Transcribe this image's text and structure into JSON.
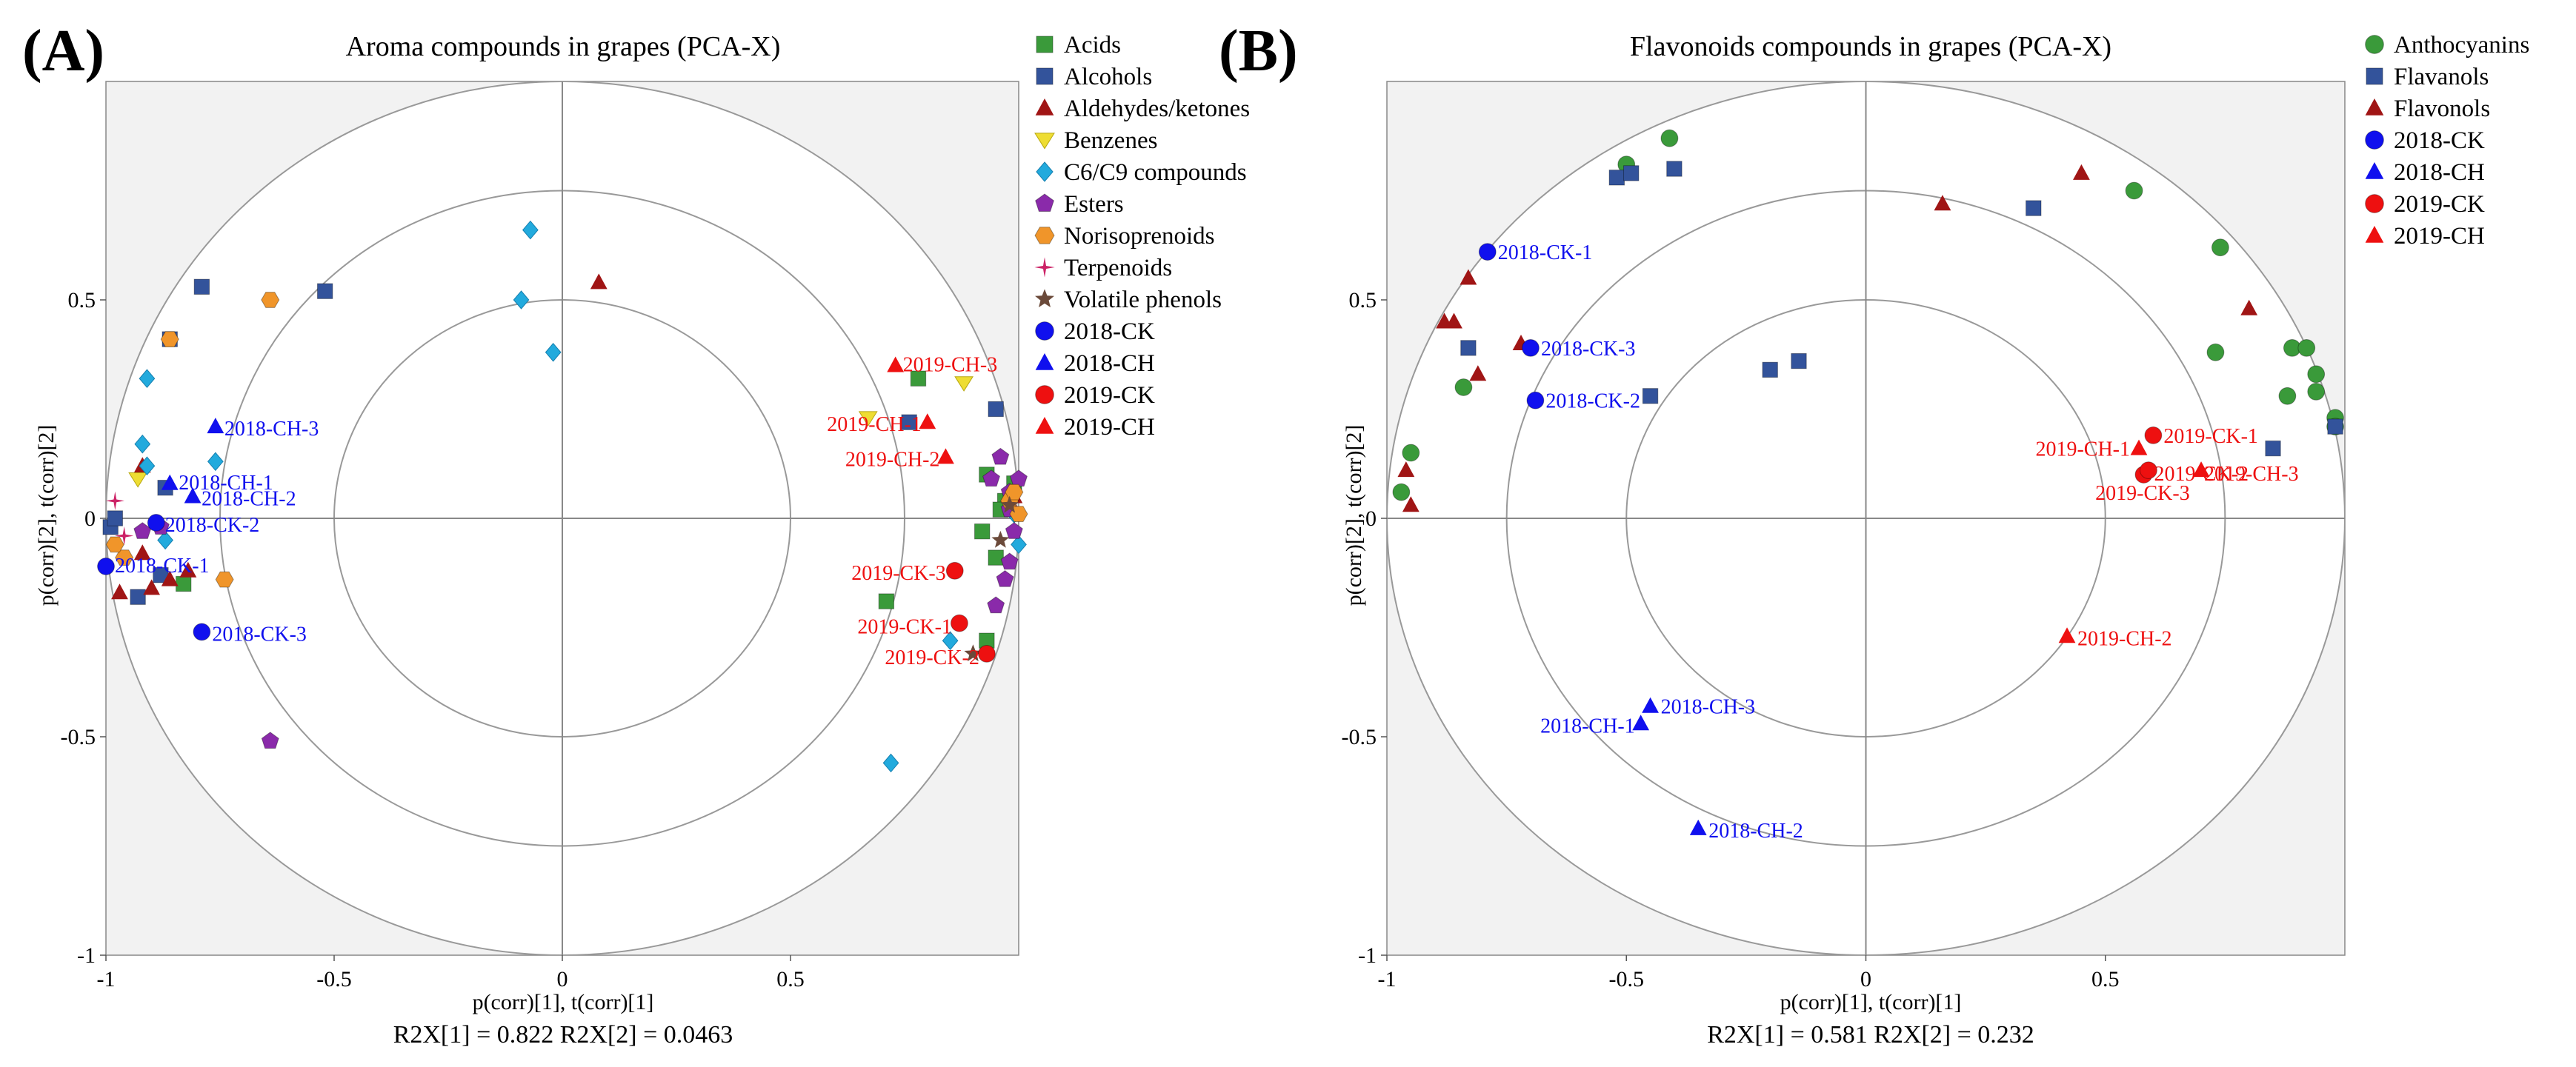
{
  "panels": [
    {
      "panel_label": "(A)",
      "r2_text": "R2X[1] = 0.822   R2X[2] = 0.0463",
      "legend": [
        {
          "name": "Acids",
          "color": "#3a9a3a",
          "shape": "square"
        },
        {
          "name": "Alcohols",
          "color": "#33539b",
          "shape": "square"
        },
        {
          "name": "Aldehydes/ketones",
          "color": "#a01515",
          "shape": "triangle"
        },
        {
          "name": "Benzenes",
          "color": "#eedd33",
          "shape": "triangle-down"
        },
        {
          "name": "C6/C9 compounds",
          "color": "#22aadd",
          "shape": "diamond"
        },
        {
          "name": "Esters",
          "color": "#8a2aaa",
          "shape": "pentagon"
        },
        {
          "name": "Norisoprenoids",
          "color": "#f0952a",
          "shape": "hexagon"
        },
        {
          "name": "Terpenoids",
          "color": "#cc2266",
          "shape": "star"
        },
        {
          "name": "Volatile phenols",
          "color": "#6b4a3a",
          "shape": "star5"
        },
        {
          "name": "2018-CK",
          "color": "#1010ee",
          "shape": "circle"
        },
        {
          "name": "2018-CH",
          "color": "#1010ee",
          "shape": "triangle"
        },
        {
          "name": "2019-CK",
          "color": "#ee1010",
          "shape": "circle"
        },
        {
          "name": "2019-CH",
          "color": "#ee1010",
          "shape": "triangle"
        }
      ]
    },
    {
      "panel_label": "(B)",
      "r2_text": "R2X[1] = 0.581  R2X[2] = 0.232",
      "legend": [
        {
          "name": "Anthocyanins",
          "color": "#3a9a3a",
          "shape": "circle"
        },
        {
          "name": "Flavanols",
          "color": "#33539b",
          "shape": "square"
        },
        {
          "name": "Flavonols",
          "color": "#a01515",
          "shape": "triangle"
        },
        {
          "name": "2018-CK",
          "color": "#1010ee",
          "shape": "circle"
        },
        {
          "name": "2018-CH",
          "color": "#1010ee",
          "shape": "triangle"
        },
        {
          "name": "2019-CK",
          "color": "#ee1010",
          "shape": "circle"
        },
        {
          "name": "2019-CH",
          "color": "#ee1010",
          "shape": "triangle"
        }
      ]
    }
  ],
  "chart_data": [
    {
      "type": "scatter",
      "title": "Aroma compounds in grapes (PCA-X)",
      "xlabel": "p(corr)[1], t(corr)[1]",
      "ylabel": "p(corr)[2], t(corr)[2]",
      "xlim": [
        -1,
        1
      ],
      "ylim": [
        -1,
        1
      ],
      "xticks": [
        "-1",
        "-0.5",
        "0",
        "0.5"
      ],
      "yticks": [
        "-1",
        "-0.5",
        "0",
        "0.5"
      ],
      "circles": [
        0.5,
        0.75,
        1.0
      ],
      "series": [
        {
          "name": "Acids",
          "points": [
            [
              -0.83,
              -0.15
            ],
            [
              0.78,
              0.32
            ],
            [
              0.93,
              0.1
            ],
            [
              0.97,
              0.04
            ],
            [
              0.92,
              -0.03
            ],
            [
              0.95,
              -0.09
            ],
            [
              0.71,
              -0.19
            ],
            [
              0.93,
              -0.28
            ],
            [
              0.96,
              0.02
            ],
            [
              0.99,
              0.08
            ]
          ]
        },
        {
          "name": "Alcohols",
          "points": [
            [
              -0.99,
              -0.02
            ],
            [
              -0.98,
              0.0
            ],
            [
              -0.93,
              -0.18
            ],
            [
              -0.88,
              -0.13
            ],
            [
              -0.87,
              0.07
            ],
            [
              -0.86,
              0.41
            ],
            [
              -0.79,
              0.53
            ],
            [
              -0.52,
              0.52
            ],
            [
              0.76,
              0.22
            ],
            [
              0.95,
              0.25
            ]
          ]
        },
        {
          "name": "Aldehydes/ketones",
          "points": [
            [
              -0.97,
              -0.17
            ],
            [
              -0.92,
              -0.08
            ],
            [
              -0.9,
              -0.16
            ],
            [
              -0.86,
              -0.14
            ],
            [
              -0.82,
              -0.12
            ],
            [
              -0.92,
              0.12
            ],
            [
              0.08,
              0.54
            ],
            [
              0.99,
              0.05
            ],
            [
              0.99,
              0.02
            ]
          ]
        },
        {
          "name": "Benzenes",
          "points": [
            [
              -0.93,
              0.09
            ],
            [
              0.67,
              0.23
            ],
            [
              0.88,
              0.31
            ]
          ]
        },
        {
          "name": "C6/C9 compounds",
          "points": [
            [
              -0.91,
              0.32
            ],
            [
              -0.92,
              0.17
            ],
            [
              -0.91,
              0.12
            ],
            [
              -0.87,
              -0.05
            ],
            [
              -0.76,
              0.13
            ],
            [
              -0.07,
              0.66
            ],
            [
              -0.09,
              0.5
            ],
            [
              -0.02,
              0.38
            ],
            [
              0.72,
              -0.56
            ],
            [
              0.85,
              -0.28
            ],
            [
              1.0,
              -0.06
            ],
            [
              0.99,
              0.01
            ]
          ]
        },
        {
          "name": "Esters",
          "points": [
            [
              -0.92,
              -0.03
            ],
            [
              -0.88,
              -0.02
            ],
            [
              -0.64,
              -0.51
            ],
            [
              0.96,
              0.14
            ],
            [
              0.94,
              0.09
            ],
            [
              0.98,
              0.06
            ],
            [
              1.0,
              0.09
            ],
            [
              0.99,
              -0.03
            ],
            [
              0.98,
              -0.1
            ],
            [
              0.97,
              -0.14
            ],
            [
              0.95,
              -0.2
            ],
            [
              0.98,
              0.02
            ]
          ]
        },
        {
          "name": "Norisoprenoids",
          "points": [
            [
              -0.86,
              0.41
            ],
            [
              -0.64,
              0.5
            ],
            [
              -0.74,
              -0.14
            ],
            [
              -0.96,
              -0.09
            ],
            [
              -0.98,
              -0.06
            ],
            [
              0.98,
              0.04
            ],
            [
              1.0,
              0.01
            ],
            [
              0.99,
              0.06
            ]
          ]
        },
        {
          "name": "Terpenoids",
          "points": [
            [
              -0.98,
              0.04
            ],
            [
              -0.96,
              -0.04
            ]
          ]
        },
        {
          "name": "Volatile phenols",
          "points": [
            [
              0.9,
              -0.31
            ],
            [
              0.96,
              -0.05
            ],
            [
              0.98,
              0.03
            ]
          ]
        },
        {
          "name": "2018-CK",
          "points": [
            [
              -1.0,
              -0.11
            ],
            [
              -0.89,
              -0.01
            ],
            [
              -0.79,
              -0.26
            ]
          ],
          "labels": [
            "2018-CK-1",
            "2018-CK-2",
            "2018-CK-3"
          ]
        },
        {
          "name": "2018-CH",
          "points": [
            [
              -0.86,
              0.08
            ],
            [
              -0.81,
              0.05
            ],
            [
              -0.76,
              0.21
            ]
          ],
          "labels": [
            "2018-CH-1",
            "2018-CH-2",
            "2018-CH-3"
          ]
        },
        {
          "name": "2019-CK",
          "points": [
            [
              0.87,
              -0.24
            ],
            [
              0.93,
              -0.31
            ],
            [
              0.86,
              -0.12
            ]
          ],
          "labels": [
            "2019-CK-1",
            "2019-CK-2",
            "2019-CK-3"
          ]
        },
        {
          "name": "2019-CH",
          "points": [
            [
              0.8,
              0.22
            ],
            [
              0.84,
              0.14
            ],
            [
              0.73,
              0.35
            ]
          ],
          "labels": [
            "2019-CH-1",
            "2019-CH-2",
            "2019-CH-3"
          ]
        }
      ]
    },
    {
      "type": "scatter",
      "title": "Flavonoids compounds in grapes (PCA-X)",
      "xlabel": "p(corr)[1], t(corr)[1]",
      "ylabel": "p(corr)[2], t(corr)[2]",
      "xlim": [
        -1,
        1
      ],
      "ylim": [
        -1,
        1
      ],
      "xticks": [
        "-1",
        "-0.5",
        "0",
        "0.5"
      ],
      "yticks": [
        "-1",
        "-0.5",
        "0",
        "0.5"
      ],
      "circles": [
        0.5,
        0.75,
        1.0
      ],
      "series": [
        {
          "name": "Anthocyanins",
          "points": [
            [
              -0.5,
              0.81
            ],
            [
              -0.41,
              0.87
            ],
            [
              -0.97,
              0.06
            ],
            [
              -0.95,
              0.15
            ],
            [
              -0.84,
              0.3
            ],
            [
              0.56,
              0.75
            ],
            [
              0.74,
              0.62
            ],
            [
              0.73,
              0.38
            ],
            [
              0.88,
              0.28
            ],
            [
              0.89,
              0.39
            ],
            [
              0.92,
              0.39
            ],
            [
              0.94,
              0.33
            ],
            [
              0.94,
              0.29
            ],
            [
              0.98,
              0.23
            ],
            [
              0.98,
              0.21
            ]
          ]
        },
        {
          "name": "Flavanols",
          "points": [
            [
              -0.52,
              0.78
            ],
            [
              -0.49,
              0.79
            ],
            [
              -0.4,
              0.8
            ],
            [
              -0.83,
              0.39
            ],
            [
              -0.45,
              0.28
            ],
            [
              -0.2,
              0.34
            ],
            [
              -0.14,
              0.36
            ],
            [
              0.35,
              0.71
            ],
            [
              0.85,
              0.16
            ],
            [
              0.98,
              0.21
            ]
          ]
        },
        {
          "name": "Flavonols",
          "points": [
            [
              -0.88,
              0.45
            ],
            [
              -0.86,
              0.45
            ],
            [
              -0.83,
              0.55
            ],
            [
              -0.81,
              0.33
            ],
            [
              -0.72,
              0.4
            ],
            [
              -0.96,
              0.11
            ],
            [
              -0.95,
              0.03
            ],
            [
              0.16,
              0.72
            ],
            [
              0.45,
              0.79
            ],
            [
              0.8,
              0.48
            ]
          ]
        },
        {
          "name": "2018-CK",
          "points": [
            [
              -0.79,
              0.61
            ],
            [
              -0.7,
              0.39
            ],
            [
              -0.69,
              0.27
            ]
          ],
          "labels": [
            "2018-CK-1",
            "2018-CK-3",
            "2018-CK-2"
          ]
        },
        {
          "name": "2018-CH",
          "points": [
            [
              -0.47,
              -0.47
            ],
            [
              -0.45,
              -0.43
            ],
            [
              -0.35,
              -0.71
            ]
          ],
          "labels": [
            "2018-CH-1",
            "2018-CH-3",
            "2018-CH-2"
          ]
        },
        {
          "name": "2019-CK",
          "points": [
            [
              0.6,
              0.19
            ],
            [
              0.58,
              0.1
            ],
            [
              0.59,
              0.11
            ]
          ],
          "labels": [
            "2019-CK-1",
            "2019-CK-2",
            "2019-CK-3"
          ]
        },
        {
          "name": "2019-CH",
          "points": [
            [
              0.57,
              0.16
            ],
            [
              0.7,
              0.11
            ],
            [
              0.42,
              -0.27
            ]
          ],
          "labels": [
            "2019-CH-1",
            "2019-CH-3",
            "2019-CH-2"
          ]
        }
      ]
    }
  ]
}
